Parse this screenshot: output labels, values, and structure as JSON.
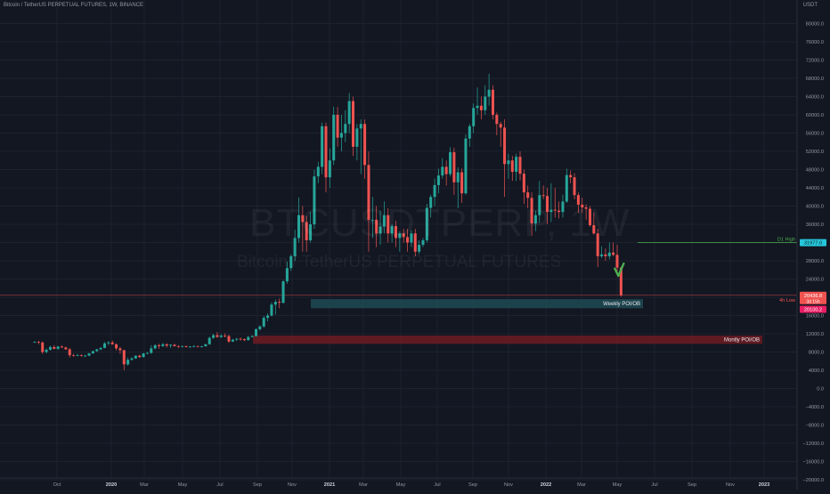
{
  "header": {
    "symbol_line": "Bitcoin / TetherUS PERPETUAL FUTURES, 1W, BINANCE",
    "currency": "USDT"
  },
  "watermark": {
    "ticker": "BTCUSDTPERP, 1W",
    "description": "Bitcoin / TetherUS PERPETUAL FUTURES"
  },
  "colors": {
    "background": "#131722",
    "up": "#26a69a",
    "down": "#ef5350",
    "grid": "#1e222d",
    "weekly_zone": "#1e4a52",
    "monthly_zone": "#6e1b22",
    "price_label": "#ef5350",
    "accent_green": "#4caf50",
    "d1_high_label": "#26c6da"
  },
  "chart_data": {
    "type": "candlestick",
    "timeframe": "1W",
    "symbol": "BTCUSDTPERP",
    "exchange": "BINANCE",
    "ylim": [
      -22000,
      84000
    ],
    "x_ticks": [
      "Oct",
      "2020",
      "Mar",
      "May",
      "Jul",
      "Sep",
      "Nov",
      "2021",
      "Mar",
      "May",
      "Jul",
      "Sep",
      "Nov",
      "2022",
      "Mar",
      "May",
      "Jul",
      "Sep",
      "Nov",
      "2023"
    ],
    "y_ticks": [
      "80000.0",
      "76000.0",
      "72000.0",
      "68000.0",
      "64000.0",
      "60000.0",
      "56000.0",
      "52000.0",
      "48000.0",
      "44000.0",
      "40000.0",
      "36000.0",
      "32000.0",
      "28000.0",
      "24000.0",
      "20000.0",
      "16000.0",
      "12000.0",
      "8000.0",
      "4000.0",
      "0.0",
      "−4000.0",
      "−8000.0",
      "−12000.0",
      "−16000.0",
      "−20000.0"
    ],
    "zones": [
      {
        "label": "Weekly POI/OB",
        "low": 17600,
        "high": 19600,
        "start": "2020-12",
        "end": "2022-06"
      },
      {
        "label": "Montly POI/OB",
        "low": 9800,
        "high": 11600,
        "start": "2020-08",
        "end": "2023-01"
      }
    ],
    "levels": [
      {
        "label": "D1 High",
        "value": 31977.0,
        "display": "31977.0"
      },
      {
        "label": "4h Low",
        "value": 20100.2,
        "display": "20100.2"
      }
    ],
    "price_labels": {
      "last": "20436.8",
      "countdown": "3d 15h"
    },
    "marker": "checkmark",
    "candles": [
      [
        10200,
        10400,
        10000,
        10200
      ],
      [
        10200,
        10500,
        9700,
        10100
      ],
      [
        10100,
        10300,
        7600,
        8000
      ],
      [
        8000,
        8800,
        7700,
        8500
      ],
      [
        8500,
        9400,
        8300,
        9100
      ],
      [
        9100,
        9500,
        8600,
        8700
      ],
      [
        8700,
        9300,
        8500,
        9200
      ],
      [
        9200,
        9500,
        8900,
        9000
      ],
      [
        9000,
        9200,
        8500,
        8600
      ],
      [
        8600,
        8900,
        6800,
        7300
      ],
      [
        7300,
        7600,
        7000,
        7200
      ],
      [
        7200,
        7600,
        7100,
        7300
      ],
      [
        7300,
        7500,
        7000,
        7150
      ],
      [
        7150,
        7400,
        6900,
        7200
      ],
      [
        7200,
        7800,
        7100,
        7700
      ],
      [
        7700,
        8300,
        7600,
        8200
      ],
      [
        8200,
        8700,
        8000,
        8600
      ],
      [
        8600,
        9100,
        8400,
        8900
      ],
      [
        8900,
        10200,
        8800,
        9900
      ],
      [
        9900,
        10400,
        9500,
        10100
      ],
      [
        10100,
        10500,
        9600,
        9700
      ],
      [
        9700,
        9900,
        8400,
        8800
      ],
      [
        8800,
        9100,
        7600,
        8400
      ],
      [
        8400,
        8500,
        4000,
        5300
      ],
      [
        5300,
        6800,
        5000,
        6300
      ],
      [
        6300,
        6900,
        6100,
        6600
      ],
      [
        6600,
        7300,
        6500,
        7200
      ],
      [
        7200,
        7400,
        6700,
        6900
      ],
      [
        6900,
        7800,
        6800,
        7700
      ],
      [
        7700,
        8000,
        7500,
        7800
      ],
      [
        7800,
        9500,
        7600,
        8800
      ],
      [
        8800,
        9700,
        8600,
        9500
      ],
      [
        9500,
        9800,
        8700,
        9300
      ],
      [
        9300,
        10000,
        9100,
        9700
      ],
      [
        9700,
        9900,
        9000,
        9400
      ],
      [
        9400,
        9700,
        8900,
        9600
      ],
      [
        9600,
        9800,
        9200,
        9300
      ],
      [
        9300,
        9500,
        8900,
        9200
      ],
      [
        9200,
        9400,
        9000,
        9300
      ],
      [
        9300,
        9400,
        9000,
        9100
      ],
      [
        9100,
        9300,
        8900,
        9200
      ],
      [
        9200,
        9500,
        9000,
        9300
      ],
      [
        9300,
        9400,
        9000,
        9150
      ],
      [
        9150,
        9400,
        9000,
        9250
      ],
      [
        9250,
        9800,
        9200,
        9700
      ],
      [
        9700,
        11400,
        9600,
        11100
      ],
      [
        11100,
        12000,
        10900,
        11700
      ],
      [
        11700,
        12400,
        11100,
        11300
      ],
      [
        11300,
        11900,
        11100,
        11600
      ],
      [
        11600,
        12100,
        11200,
        11500
      ],
      [
        11500,
        11800,
        10000,
        10300
      ],
      [
        10300,
        10900,
        10200,
        10700
      ],
      [
        10700,
        11100,
        10400,
        10900
      ],
      [
        10900,
        11200,
        10500,
        10800
      ],
      [
        10800,
        11000,
        10400,
        10600
      ],
      [
        10600,
        11500,
        10500,
        11300
      ],
      [
        11300,
        11700,
        11200,
        11500
      ],
      [
        11500,
        13200,
        11400,
        13000
      ],
      [
        13000,
        13900,
        12700,
        13600
      ],
      [
        13600,
        15900,
        13300,
        15500
      ],
      [
        15500,
        16500,
        14700,
        16000
      ],
      [
        16000,
        18900,
        15800,
        18400
      ],
      [
        18400,
        19500,
        16200,
        19000
      ],
      [
        19000,
        19700,
        17600,
        18800
      ],
      [
        18800,
        23800,
        18600,
        23500
      ],
      [
        23500,
        27800,
        23000,
        26400
      ],
      [
        26400,
        29400,
        25800,
        29000
      ],
      [
        29000,
        34800,
        28000,
        33000
      ],
      [
        33000,
        41900,
        32000,
        38000
      ],
      [
        38000,
        40000,
        30000,
        36500
      ],
      [
        36500,
        37800,
        30000,
        32500
      ],
      [
        32500,
        38700,
        32000,
        36000
      ],
      [
        36000,
        48000,
        35000,
        46500
      ],
      [
        46500,
        49700,
        45000,
        48600
      ],
      [
        48600,
        58300,
        47000,
        57500
      ],
      [
        57500,
        58300,
        43000,
        46300
      ],
      [
        46300,
        52600,
        44000,
        50000
      ],
      [
        50000,
        61800,
        49000,
        60000
      ],
      [
        60000,
        61700,
        53000,
        55000
      ],
      [
        55000,
        60000,
        52000,
        56000
      ],
      [
        56000,
        61000,
        54000,
        58000
      ],
      [
        58000,
        64800,
        56000,
        63000
      ],
      [
        63000,
        64000,
        51000,
        53000
      ],
      [
        53000,
        58000,
        50000,
        57000
      ],
      [
        57000,
        59000,
        47000,
        58000
      ],
      [
        58000,
        59000,
        46000,
        49000
      ],
      [
        49000,
        52000,
        30000,
        37000
      ],
      [
        37000,
        42000,
        33000,
        37000
      ],
      [
        37000,
        40000,
        31000,
        34000
      ],
      [
        34000,
        39000,
        31500,
        35500
      ],
      [
        35500,
        41000,
        34000,
        38000
      ],
      [
        38000,
        39500,
        32000,
        34000
      ],
      [
        34000,
        36000,
        32000,
        35600
      ],
      [
        35600,
        36800,
        31000,
        33000
      ],
      [
        33000,
        34500,
        30000,
        34000
      ],
      [
        34000,
        35000,
        32000,
        33200
      ],
      [
        33200,
        35000,
        30000,
        32000
      ],
      [
        32000,
        34700,
        31000,
        34000
      ],
      [
        34000,
        35000,
        29000,
        30000
      ],
      [
        30000,
        32500,
        29500,
        31500
      ],
      [
        31500,
        33000,
        31000,
        32500
      ],
      [
        32500,
        40500,
        32000,
        39600
      ],
      [
        39600,
        42500,
        37500,
        42000
      ],
      [
        42000,
        46000,
        40000,
        44600
      ],
      [
        44600,
        48200,
        42800,
        46700
      ],
      [
        46700,
        50500,
        46000,
        48600
      ],
      [
        48600,
        50000,
        44500,
        47000
      ],
      [
        47000,
        52900,
        46500,
        51800
      ],
      [
        51800,
        52800,
        42500,
        45200
      ],
      [
        45200,
        48500,
        39500,
        47400
      ],
      [
        47400,
        48200,
        40700,
        42800
      ],
      [
        42800,
        55700,
        42500,
        54800
      ],
      [
        54800,
        58000,
        53000,
        57500
      ],
      [
        57500,
        62500,
        56000,
        61500
      ],
      [
        61500,
        66000,
        60000,
        62000
      ],
      [
        62000,
        64000,
        59000,
        61000
      ],
      [
        61000,
        66500,
        60000,
        64000
      ],
      [
        64000,
        69000,
        62000,
        65500
      ],
      [
        65500,
        66500,
        59000,
        60000
      ],
      [
        60000,
        60500,
        55500,
        58000
      ],
      [
        58000,
        58500,
        53000,
        57200
      ],
      [
        57200,
        59000,
        42000,
        49200
      ],
      [
        49200,
        51500,
        46000,
        50000
      ],
      [
        50000,
        51000,
        45500,
        47500
      ],
      [
        47500,
        51500,
        45500,
        50800
      ],
      [
        50800,
        52000,
        45600,
        47100
      ],
      [
        47100,
        48000,
        40500,
        43000
      ],
      [
        43000,
        44500,
        39500,
        41800
      ],
      [
        41800,
        43000,
        33500,
        36200
      ],
      [
        36200,
        39000,
        34500,
        38000
      ],
      [
        38000,
        45500,
        36300,
        42400
      ],
      [
        42400,
        44500,
        41500,
        42200
      ],
      [
        42200,
        44000,
        36000,
        38700
      ],
      [
        38700,
        45000,
        36500,
        39200
      ],
      [
        39200,
        44000,
        37500,
        39000
      ],
      [
        39000,
        41000,
        37300,
        38700
      ],
      [
        38700,
        42500,
        37500,
        41000
      ],
      [
        41000,
        48200,
        40700,
        46800
      ],
      [
        46800,
        47800,
        45000,
        46300
      ],
      [
        46300,
        47200,
        41500,
        42400
      ],
      [
        42400,
        43000,
        38500,
        40300
      ],
      [
        40300,
        41800,
        38500,
        39700
      ],
      [
        39700,
        40400,
        37000,
        39400
      ],
      [
        39400,
        40000,
        35500,
        35800
      ],
      [
        35800,
        38600,
        33700,
        34000
      ],
      [
        34000,
        35000,
        26600,
        29000
      ],
      [
        29000,
        31200,
        28600,
        29400
      ],
      [
        29400,
        30700,
        28000,
        29000
      ],
      [
        29000,
        32000,
        28300,
        29800
      ],
      [
        29800,
        32000,
        29000,
        29300
      ],
      [
        29300,
        31500,
        25200,
        26500
      ],
      [
        26500,
        26700,
        20100,
        20436.8
      ]
    ]
  }
}
